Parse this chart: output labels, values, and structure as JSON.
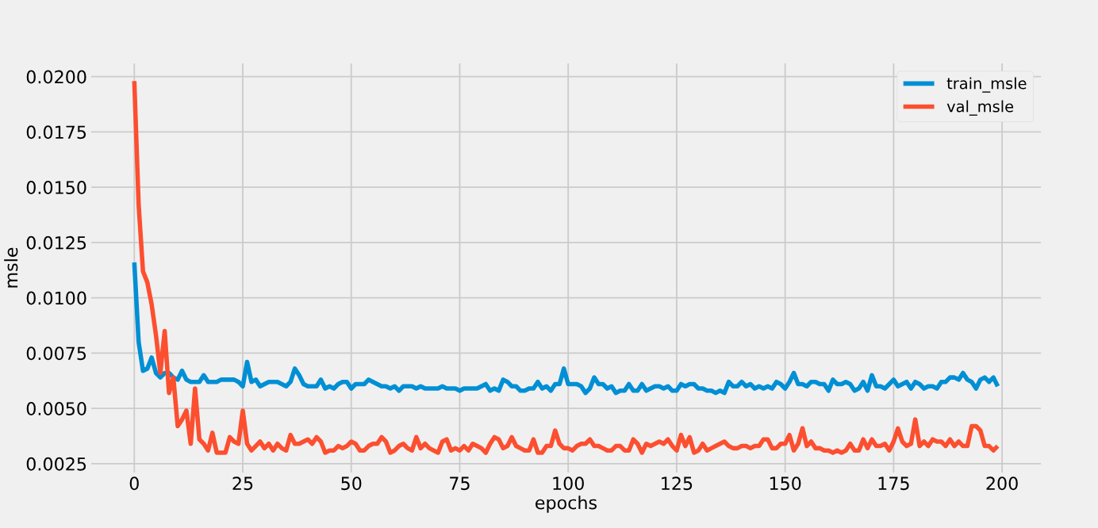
{
  "chart_data": {
    "type": "line",
    "xlabel": "epochs",
    "ylabel": "msle",
    "x": [
      0,
      1,
      2,
      3,
      4,
      5,
      6,
      7,
      8,
      9,
      10,
      11,
      12,
      13,
      14,
      15,
      16,
      17,
      18,
      19,
      20,
      21,
      22,
      23,
      24,
      25,
      26,
      27,
      28,
      29,
      30,
      31,
      32,
      33,
      34,
      35,
      36,
      37,
      38,
      39,
      40,
      41,
      42,
      43,
      44,
      45,
      46,
      47,
      48,
      49,
      50,
      51,
      52,
      53,
      54,
      55,
      56,
      57,
      58,
      59,
      60,
      61,
      62,
      63,
      64,
      65,
      66,
      67,
      68,
      69,
      70,
      71,
      72,
      73,
      74,
      75,
      76,
      77,
      78,
      79,
      80,
      81,
      82,
      83,
      84,
      85,
      86,
      87,
      88,
      89,
      90,
      91,
      92,
      93,
      94,
      95,
      96,
      97,
      98,
      99,
      100,
      101,
      102,
      103,
      104,
      105,
      106,
      107,
      108,
      109,
      110,
      111,
      112,
      113,
      114,
      115,
      116,
      117,
      118,
      119,
      120,
      121,
      122,
      123,
      124,
      125,
      126,
      127,
      128,
      129,
      130,
      131,
      132,
      133,
      134,
      135,
      136,
      137,
      138,
      139,
      140,
      141,
      142,
      143,
      144,
      145,
      146,
      147,
      148,
      149,
      150,
      151,
      152,
      153,
      154,
      155,
      156,
      157,
      158,
      159,
      160,
      161,
      162,
      163,
      164,
      165,
      166,
      167,
      168,
      169,
      170,
      171,
      172,
      173,
      174,
      175,
      176,
      177,
      178,
      179,
      180,
      181,
      182,
      183,
      184,
      185,
      186,
      187,
      188,
      189,
      190,
      191,
      192,
      193,
      194,
      195,
      196,
      197,
      198,
      199
    ],
    "series": [
      {
        "name": "train_msle",
        "color": "#008fd5",
        "values": [
          0.0116,
          0.008,
          0.0067,
          0.0068,
          0.0073,
          0.0066,
          0.0064,
          0.0066,
          0.0066,
          0.0064,
          0.0063,
          0.0067,
          0.0063,
          0.0062,
          0.0062,
          0.0062,
          0.0065,
          0.0062,
          0.0062,
          0.0062,
          0.0063,
          0.0063,
          0.0063,
          0.0063,
          0.0062,
          0.006,
          0.0071,
          0.0062,
          0.0063,
          0.006,
          0.0061,
          0.0062,
          0.0062,
          0.0062,
          0.0061,
          0.006,
          0.0062,
          0.0068,
          0.0065,
          0.0061,
          0.006,
          0.006,
          0.006,
          0.0063,
          0.0059,
          0.006,
          0.0059,
          0.0061,
          0.0062,
          0.0062,
          0.0059,
          0.0061,
          0.0061,
          0.0061,
          0.0063,
          0.0062,
          0.0061,
          0.006,
          0.006,
          0.0059,
          0.006,
          0.0058,
          0.006,
          0.006,
          0.006,
          0.0059,
          0.006,
          0.0059,
          0.0059,
          0.0059,
          0.0059,
          0.006,
          0.0059,
          0.0059,
          0.0059,
          0.0058,
          0.0059,
          0.0059,
          0.0059,
          0.0059,
          0.006,
          0.0061,
          0.0058,
          0.0059,
          0.0058,
          0.0063,
          0.0062,
          0.006,
          0.006,
          0.0058,
          0.0058,
          0.0059,
          0.0059,
          0.0062,
          0.0059,
          0.006,
          0.0058,
          0.0061,
          0.0061,
          0.0068,
          0.0061,
          0.0061,
          0.0061,
          0.006,
          0.0057,
          0.0059,
          0.0064,
          0.0061,
          0.0061,
          0.0059,
          0.006,
          0.0057,
          0.0058,
          0.0058,
          0.0061,
          0.0058,
          0.0058,
          0.0061,
          0.0058,
          0.0059,
          0.006,
          0.006,
          0.0059,
          0.006,
          0.0058,
          0.0058,
          0.0061,
          0.006,
          0.0061,
          0.0061,
          0.0059,
          0.0059,
          0.0058,
          0.0058,
          0.0057,
          0.0058,
          0.0057,
          0.0062,
          0.006,
          0.006,
          0.0062,
          0.006,
          0.0061,
          0.0059,
          0.006,
          0.0059,
          0.006,
          0.0059,
          0.0062,
          0.0061,
          0.0059,
          0.0062,
          0.0066,
          0.0061,
          0.0061,
          0.006,
          0.0062,
          0.0062,
          0.0061,
          0.0061,
          0.0058,
          0.0063,
          0.0061,
          0.0061,
          0.0062,
          0.0061,
          0.0058,
          0.0059,
          0.0062,
          0.0058,
          0.0065,
          0.006,
          0.006,
          0.0059,
          0.0061,
          0.0063,
          0.006,
          0.0061,
          0.0062,
          0.0059,
          0.0062,
          0.0061,
          0.0059,
          0.006,
          0.006,
          0.0059,
          0.0062,
          0.0062,
          0.0064,
          0.0064,
          0.0063,
          0.0066,
          0.0063,
          0.0062,
          0.0059,
          0.0063,
          0.0064,
          0.0062,
          0.0064,
          0.006
        ]
      },
      {
        "name": "val_msle",
        "color": "#fc4f30",
        "values": [
          0.0198,
          0.0142,
          0.0112,
          0.0107,
          0.0097,
          0.0083,
          0.0066,
          0.0085,
          0.0057,
          0.0064,
          0.0042,
          0.0045,
          0.0049,
          0.0034,
          0.0059,
          0.0036,
          0.0034,
          0.0031,
          0.0039,
          0.003,
          0.003,
          0.003,
          0.0037,
          0.0035,
          0.0034,
          0.0049,
          0.0034,
          0.0031,
          0.0033,
          0.0035,
          0.0032,
          0.0034,
          0.0031,
          0.0034,
          0.0032,
          0.0031,
          0.0038,
          0.0034,
          0.0034,
          0.0035,
          0.0036,
          0.0034,
          0.0037,
          0.0035,
          0.003,
          0.0031,
          0.0031,
          0.0033,
          0.0032,
          0.0033,
          0.0035,
          0.0034,
          0.0031,
          0.0031,
          0.0033,
          0.0034,
          0.0034,
          0.0037,
          0.0035,
          0.003,
          0.0031,
          0.0033,
          0.0034,
          0.0032,
          0.0031,
          0.0037,
          0.0032,
          0.0034,
          0.0032,
          0.0031,
          0.003,
          0.0035,
          0.0036,
          0.0031,
          0.0032,
          0.0031,
          0.0033,
          0.0031,
          0.0034,
          0.0033,
          0.0032,
          0.003,
          0.0034,
          0.0037,
          0.0036,
          0.0032,
          0.0033,
          0.0037,
          0.0033,
          0.0032,
          0.0031,
          0.0031,
          0.0036,
          0.003,
          0.003,
          0.0033,
          0.0033,
          0.004,
          0.0034,
          0.0032,
          0.0032,
          0.0031,
          0.0033,
          0.0034,
          0.0034,
          0.0036,
          0.0033,
          0.0033,
          0.0032,
          0.0031,
          0.0031,
          0.0033,
          0.0033,
          0.0031,
          0.0031,
          0.0036,
          0.0034,
          0.003,
          0.0034,
          0.0033,
          0.0034,
          0.0035,
          0.0034,
          0.0036,
          0.0033,
          0.0031,
          0.0038,
          0.0033,
          0.0037,
          0.003,
          0.0031,
          0.0034,
          0.0031,
          0.0032,
          0.0033,
          0.0034,
          0.0035,
          0.0033,
          0.0032,
          0.0032,
          0.0033,
          0.0033,
          0.0032,
          0.0033,
          0.0033,
          0.0036,
          0.0036,
          0.0032,
          0.0032,
          0.0034,
          0.0034,
          0.0038,
          0.0031,
          0.0034,
          0.0041,
          0.0033,
          0.0035,
          0.0032,
          0.0032,
          0.0031,
          0.0031,
          0.003,
          0.0031,
          0.003,
          0.0031,
          0.0034,
          0.0031,
          0.0031,
          0.0036,
          0.0032,
          0.0036,
          0.0033,
          0.0033,
          0.0034,
          0.0031,
          0.0035,
          0.0041,
          0.0035,
          0.0033,
          0.0034,
          0.0045,
          0.0033,
          0.0035,
          0.0033,
          0.0036,
          0.0035,
          0.0035,
          0.0033,
          0.0036,
          0.0033,
          0.0035,
          0.0033,
          0.0033,
          0.0042,
          0.0042,
          0.004,
          0.0033,
          0.0033,
          0.0031,
          0.0033
        ]
      }
    ],
    "xlim": [
      -9.95,
      208.95
    ],
    "xticks": [
      0,
      25,
      50,
      75,
      100,
      125,
      150,
      175,
      200
    ],
    "ylim": [
      0.0021,
      0.0206
    ],
    "yticks": [
      {
        "value": 0.0025,
        "label": "0.0025"
      },
      {
        "value": 0.005,
        "label": "0.0050"
      },
      {
        "value": 0.0075,
        "label": "0.0075"
      },
      {
        "value": 0.01,
        "label": "0.0100"
      },
      {
        "value": 0.0125,
        "label": "0.0125"
      },
      {
        "value": 0.015,
        "label": "0.0150"
      },
      {
        "value": 0.0175,
        "label": "0.0175"
      },
      {
        "value": 0.02,
        "label": "0.0200"
      }
    ],
    "grid": true,
    "legend": "top right"
  }
}
